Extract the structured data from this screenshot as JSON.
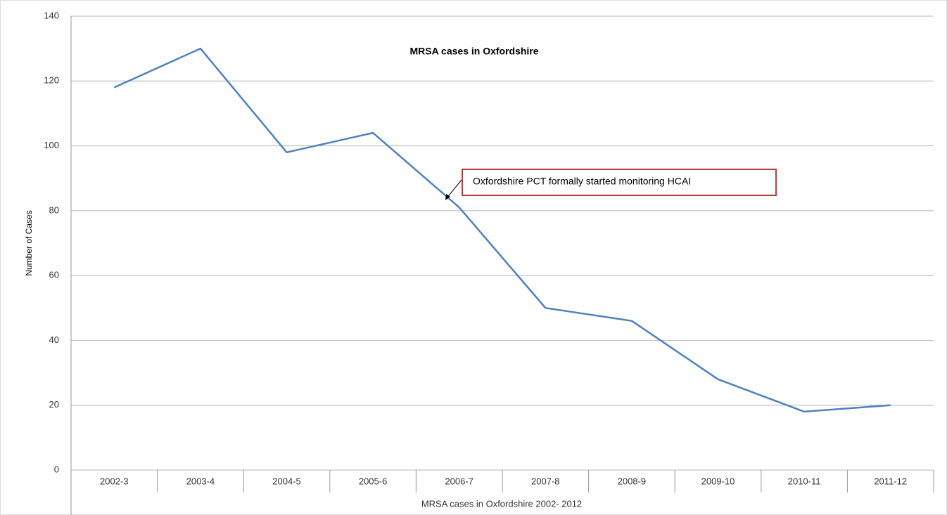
{
  "chart_data": {
    "type": "line",
    "title": "MRSA cases in Oxfordshire",
    "x_label": "MRSA cases in Oxfordshire 2002- 2012",
    "y_label": "Number of Cases",
    "annotation": "Oxfordshire PCT formally started monitoring HCAI",
    "categories": [
      "2002-3",
      "2003-4",
      "2004-5",
      "2005-6",
      "2006-7",
      "2007-8",
      "2008-9",
      "2009-10",
      "2010-11",
      "2011-12"
    ],
    "series": [
      {
        "name": "MRSA cases",
        "color": "#4f81bd",
        "values": [
          118,
          130,
          98,
          104,
          81,
          50,
          46,
          28,
          18,
          20
        ]
      }
    ],
    "ylim": [
      0,
      140
    ],
    "yticks": [
      0,
      20,
      40,
      60,
      80,
      100,
      120,
      140
    ],
    "grid": true
  }
}
